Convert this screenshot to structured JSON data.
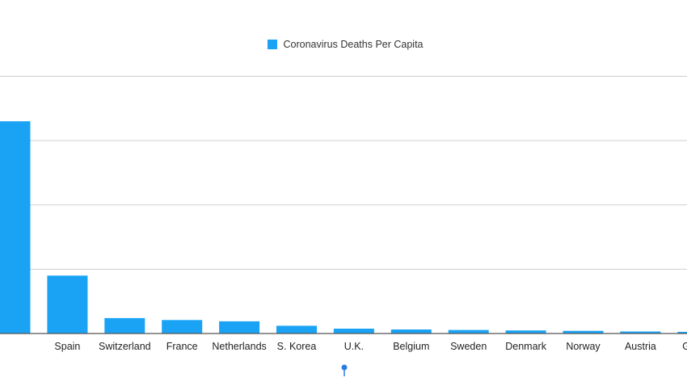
{
  "colors": {
    "bar": "#1aa3f5",
    "marker": "#2c7be5"
  },
  "chart_data": {
    "type": "bar",
    "title": "",
    "xlabel": "",
    "ylabel": "",
    "legend": "top-center",
    "grid": true,
    "series": [
      {
        "name": "Coronavirus Deaths Per Capita",
        "values": [
          330,
          90,
          24,
          21,
          19,
          12,
          7.5,
          6.3,
          5.5,
          4.8,
          4.2,
          3.2,
          2.6
        ]
      }
    ],
    "categories": [
      "",
      "Spain",
      "Switzerland",
      "France",
      "Netherlands",
      "S. Korea",
      "U.K.",
      "Belgium",
      "Sweden",
      "Denmark",
      "Norway",
      "Austria",
      "Germa"
    ],
    "ylim": [
      0,
      400
    ],
    "ygrid": [
      100,
      200,
      300,
      400
    ]
  }
}
